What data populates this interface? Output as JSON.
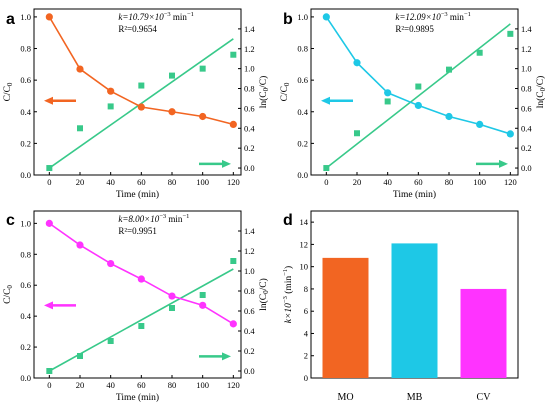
{
  "colors": {
    "MO": "#f26522",
    "MB": "#1ec8e6",
    "CV": "#ff33ff",
    "fit": "#38c98a"
  },
  "panel_labels": [
    "a",
    "b",
    "c",
    "d"
  ],
  "chart_data": [
    {
      "panel": "a",
      "type": "line",
      "xlabel": "Time (min)",
      "ylabel": "C/C",
      "ylabel_sub": "0",
      "y2label": "ln(C",
      "y2label_sub": "0",
      "y2label_end": "/C)",
      "ann_k": "k=10.79×10",
      "ann_k_exp": "−3",
      "ann_k_unit": " min",
      "ann_k_unit_exp": "−1",
      "ann_r2": "R²=0.9654",
      "xlim": [
        -10,
        125
      ],
      "ylim": [
        0,
        1.05
      ],
      "y2lim": [
        -0.07,
        1.6
      ],
      "xticks": [
        0,
        20,
        40,
        60,
        80,
        100,
        120
      ],
      "yticks": [
        0.0,
        0.2,
        0.4,
        0.6,
        0.8,
        1.0
      ],
      "y2ticks": [
        0.0,
        0.2,
        0.4,
        0.6,
        0.8,
        1.0,
        1.2,
        1.4
      ],
      "x": [
        0,
        20,
        40,
        60,
        80,
        100,
        120
      ],
      "cc0": [
        1.0,
        0.67,
        0.53,
        0.43,
        0.4,
        0.37,
        0.32
      ],
      "ln": [
        0.0,
        0.4,
        0.62,
        0.83,
        0.93,
        1.0,
        1.14
      ],
      "fit": [
        [
          0,
          0.0
        ],
        [
          120,
          1.3
        ]
      ],
      "color": "MO",
      "left_arrow_y": 0.47,
      "right_arrow_y": 0.07
    },
    {
      "panel": "b",
      "type": "line",
      "xlabel": "Time (min)",
      "ylabel": "C/C",
      "ylabel_sub": "0",
      "y2label": "ln(C",
      "y2label_sub": "0",
      "y2label_end": "/C)",
      "ann_k": "k=12.09×10",
      "ann_k_exp": "−3",
      "ann_k_unit": " min",
      "ann_k_unit_exp": "−1",
      "ann_r2": "R²=0.9895",
      "xlim": [
        -10,
        125
      ],
      "ylim": [
        0,
        1.05
      ],
      "y2lim": [
        -0.07,
        1.6
      ],
      "xticks": [
        0,
        20,
        40,
        60,
        80,
        100,
        120
      ],
      "yticks": [
        0.0,
        0.2,
        0.4,
        0.6,
        0.8,
        1.0
      ],
      "y2ticks": [
        0.0,
        0.2,
        0.4,
        0.6,
        0.8,
        1.0,
        1.2,
        1.4
      ],
      "x": [
        0,
        20,
        40,
        60,
        80,
        100,
        120
      ],
      "cc0": [
        1.0,
        0.71,
        0.52,
        0.44,
        0.37,
        0.32,
        0.26
      ],
      "ln": [
        0.0,
        0.35,
        0.67,
        0.82,
        0.99,
        1.16,
        1.35
      ],
      "fit": [
        [
          0,
          0.0
        ],
        [
          120,
          1.45
        ]
      ],
      "color": "MB",
      "left_arrow_y": 0.47,
      "right_arrow_y": 0.07
    },
    {
      "panel": "c",
      "type": "line",
      "xlabel": "Time (min)",
      "ylabel": "C/C",
      "ylabel_sub": "0",
      "y2label": "ln(C",
      "y2label_sub": "0",
      "y2label_end": "/C)",
      "ann_k": "k=8.00×10",
      "ann_k_exp": "−3",
      "ann_k_unit": " min",
      "ann_k_unit_exp": "−1",
      "ann_r2": "R²=0.9951",
      "xlim": [
        -10,
        125
      ],
      "ylim": [
        0,
        1.08
      ],
      "y2lim": [
        -0.07,
        1.6
      ],
      "xticks": [
        0,
        20,
        40,
        60,
        80,
        100,
        120
      ],
      "yticks": [
        0.0,
        0.2,
        0.4,
        0.6,
        0.8,
        1.0
      ],
      "y2ticks": [
        0.0,
        0.2,
        0.4,
        0.6,
        0.8,
        1.0,
        1.2,
        1.4
      ],
      "x": [
        0,
        20,
        40,
        60,
        80,
        100,
        120
      ],
      "cc0": [
        1.0,
        0.86,
        0.74,
        0.64,
        0.53,
        0.47,
        0.35
      ],
      "ln": [
        0.0,
        0.15,
        0.3,
        0.45,
        0.63,
        0.76,
        1.1
      ],
      "fit": [
        [
          0,
          0.0
        ],
        [
          120,
          1.02
        ]
      ],
      "color": "CV",
      "left_arrow_y": 0.47,
      "right_arrow_y": 0.14
    },
    {
      "panel": "d",
      "type": "bar",
      "ylabel": "k×10",
      "ylabel_exp": "−3",
      "ylabel_unit": " (min",
      "ylabel_unit_exp": "−1",
      "ylabel_end": ")",
      "categories": [
        "MO",
        "MB",
        "CV"
      ],
      "values": [
        10.79,
        12.09,
        8.0
      ],
      "ylim": [
        0,
        15
      ],
      "yticks": [
        0,
        2,
        4,
        6,
        8,
        10,
        12,
        14
      ],
      "colors": [
        "MO",
        "MB",
        "CV"
      ]
    }
  ]
}
